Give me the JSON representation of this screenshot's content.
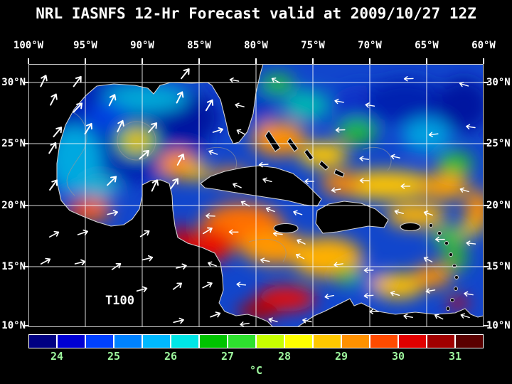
{
  "title": "NRL IASNFS  12-Hr Forecast valid at 2009/10/27 12Z",
  "map": {
    "field_label": "T100",
    "x_axis_labels": [
      "100°W",
      "95°W",
      "90°W",
      "85°W",
      "80°W",
      "75°W",
      "70°W",
      "65°W",
      "60°W"
    ],
    "y_axis_labels": [
      "30°N",
      "25°N",
      "20°N",
      "15°N",
      "10°N"
    ]
  },
  "colorbar": {
    "unit": "°C",
    "tick_labels": [
      "24",
      "25",
      "26",
      "27",
      "28",
      "29",
      "30",
      "31"
    ],
    "label_color": "#9df59d",
    "colors": [
      "#000082",
      "#0000d2",
      "#0041ff",
      "#0082ff",
      "#00b9ff",
      "#00e6e6",
      "#00c300",
      "#2ee12e",
      "#c8ff00",
      "#ffff00",
      "#ffc800",
      "#ff9100",
      "#ff4b00",
      "#e10000",
      "#a00000",
      "#5a0000"
    ]
  },
  "colors": {
    "background": "#000000",
    "text": "#ffffff",
    "grid": "#ffffff",
    "coastline": "#d0d0d0"
  }
}
